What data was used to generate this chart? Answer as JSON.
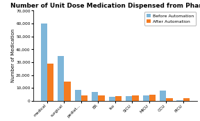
{
  "title": "Number of Unit Dose Medication Dispensed from Pharmacy",
  "ylabel": "Number of Medication",
  "categories": [
    "medical",
    "surgical",
    "pediat...",
    "ER",
    "Iso",
    "SICU",
    "MICU",
    "CCU",
    "PICU"
  ],
  "before": [
    60000,
    35000,
    8500,
    7000,
    3000,
    3500,
    4500,
    8000,
    500
  ],
  "after": [
    29000,
    15000,
    4000,
    4500,
    3500,
    4000,
    5000,
    2000,
    2000
  ],
  "color_before": "#7EB6D9",
  "color_after": "#F47B20",
  "legend_before": "Before Automation",
  "legend_after": "After Automation",
  "ylim": [
    0,
    70000
  ],
  "yticks": [
    0,
    10000,
    20000,
    30000,
    40000,
    50000,
    60000,
    70000
  ],
  "background_color": "#FFFFFF",
  "title_fontsize": 6.5,
  "axis_fontsize": 5.0,
  "tick_fontsize": 4.2,
  "legend_fontsize": 4.5,
  "bar_width": 0.38
}
